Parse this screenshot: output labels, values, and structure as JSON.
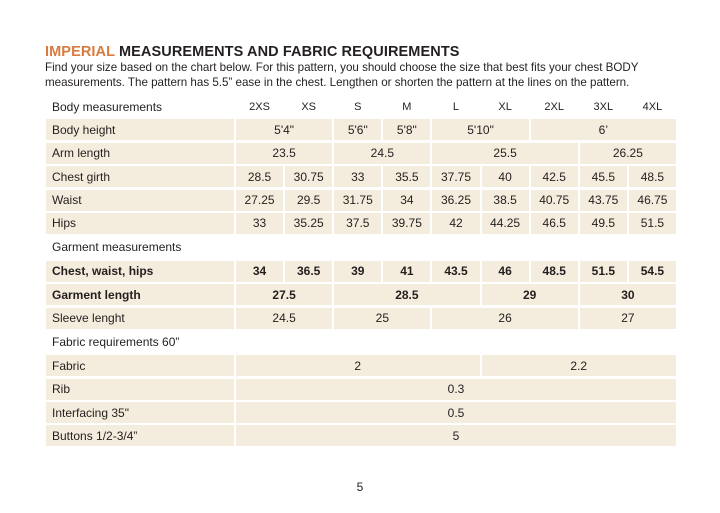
{
  "heading": {
    "accent": "IMPERIAL",
    "rest": " MEASUREMENTS AND FABRIC REQUIREMENTS"
  },
  "intro": "Find your size based on the chart below. For this pattern, you should choose the size that best fits your chest BODY measurements. The pattern has 5.5” ease in the chest. Lengthen or shorten the pattern at the lines on the pattern.",
  "colors": {
    "accent": "#d97a3e",
    "cell_bg": "#f4ecdc",
    "text": "#231f20"
  },
  "table": {
    "rows": [
      {
        "kind": "header",
        "label": "Body measurements",
        "cells": [
          {
            "v": "2XS",
            "span": 1
          },
          {
            "v": "XS",
            "span": 1
          },
          {
            "v": "S",
            "span": 1
          },
          {
            "v": "M",
            "span": 1
          },
          {
            "v": "L",
            "span": 1
          },
          {
            "v": "XL",
            "span": 1
          },
          {
            "v": "2XL",
            "span": 1
          },
          {
            "v": "3XL",
            "span": 1
          },
          {
            "v": "4XL",
            "span": 1
          }
        ]
      },
      {
        "kind": "data",
        "label": "Body height",
        "cells": [
          {
            "v": "5'4\"",
            "span": 2
          },
          {
            "v": "5'6\"",
            "span": 1
          },
          {
            "v": "5'8\"",
            "span": 1
          },
          {
            "v": "5'10\"",
            "span": 2
          },
          {
            "v": "6’",
            "span": 3
          }
        ]
      },
      {
        "kind": "data",
        "label": "Arm length",
        "cells": [
          {
            "v": "23.5",
            "span": 2
          },
          {
            "v": "24.5",
            "span": 2
          },
          {
            "v": "25.5",
            "span": 3
          },
          {
            "v": "26.25",
            "span": 2
          }
        ]
      },
      {
        "kind": "data",
        "label": "Chest girth",
        "cells": [
          {
            "v": "28.5",
            "span": 1
          },
          {
            "v": "30.75",
            "span": 1
          },
          {
            "v": "33",
            "span": 1
          },
          {
            "v": "35.5",
            "span": 1
          },
          {
            "v": "37.75",
            "span": 1
          },
          {
            "v": "40",
            "span": 1
          },
          {
            "v": "42.5",
            "span": 1
          },
          {
            "v": "45.5",
            "span": 1
          },
          {
            "v": "48.5",
            "span": 1
          }
        ]
      },
      {
        "kind": "data",
        "label": "Waist",
        "cells": [
          {
            "v": "27.25",
            "span": 1
          },
          {
            "v": "29.5",
            "span": 1
          },
          {
            "v": "31.75",
            "span": 1
          },
          {
            "v": "34",
            "span": 1
          },
          {
            "v": "36.25",
            "span": 1
          },
          {
            "v": "38.5",
            "span": 1
          },
          {
            "v": "40.75",
            "span": 1
          },
          {
            "v": "43.75",
            "span": 1
          },
          {
            "v": "46.75",
            "span": 1
          }
        ]
      },
      {
        "kind": "data",
        "label": "Hips",
        "cells": [
          {
            "v": "33",
            "span": 1
          },
          {
            "v": "35.25",
            "span": 1
          },
          {
            "v": "37.5",
            "span": 1
          },
          {
            "v": "39.75",
            "span": 1
          },
          {
            "v": "42",
            "span": 1
          },
          {
            "v": "44.25",
            "span": 1
          },
          {
            "v": "46.5",
            "span": 1
          },
          {
            "v": "49.5",
            "span": 1
          },
          {
            "v": "51.5",
            "span": 1
          }
        ]
      },
      {
        "kind": "section",
        "label": "Garment measurements",
        "cells": []
      },
      {
        "kind": "bold",
        "label": "Chest, waist, hips",
        "cells": [
          {
            "v": "34",
            "span": 1
          },
          {
            "v": "36.5",
            "span": 1
          },
          {
            "v": "39",
            "span": 1
          },
          {
            "v": "41",
            "span": 1
          },
          {
            "v": "43.5",
            "span": 1
          },
          {
            "v": "46",
            "span": 1
          },
          {
            "v": "48.5",
            "span": 1
          },
          {
            "v": "51.5",
            "span": 1
          },
          {
            "v": "54.5",
            "span": 1
          }
        ]
      },
      {
        "kind": "bold",
        "label": "Garment length",
        "cells": [
          {
            "v": "27.5",
            "span": 2
          },
          {
            "v": "28.5",
            "span": 3
          },
          {
            "v": "29",
            "span": 2
          },
          {
            "v": "30",
            "span": 2
          }
        ]
      },
      {
        "kind": "data",
        "label": "Sleeve lenght",
        "cells": [
          {
            "v": "24.5",
            "span": 2
          },
          {
            "v": "25",
            "span": 2
          },
          {
            "v": "26",
            "span": 3
          },
          {
            "v": "27",
            "span": 2
          }
        ]
      },
      {
        "kind": "section",
        "label": "Fabric requirements 60”",
        "cells": []
      },
      {
        "kind": "data",
        "label": "Fabric",
        "cells": [
          {
            "v": "2",
            "span": 5
          },
          {
            "v": "2.2",
            "span": 4
          }
        ]
      },
      {
        "kind": "data",
        "label": "Rib",
        "cells": [
          {
            "v": "0.3",
            "span": 9
          }
        ]
      },
      {
        "kind": "data",
        "label": "Interfacing 35\"",
        "cells": [
          {
            "v": "0.5",
            "span": 9
          }
        ]
      },
      {
        "kind": "data",
        "label": "Buttons 1/2-3/4”",
        "cells": [
          {
            "v": "5",
            "span": 9
          }
        ]
      }
    ]
  },
  "page_number": "5"
}
